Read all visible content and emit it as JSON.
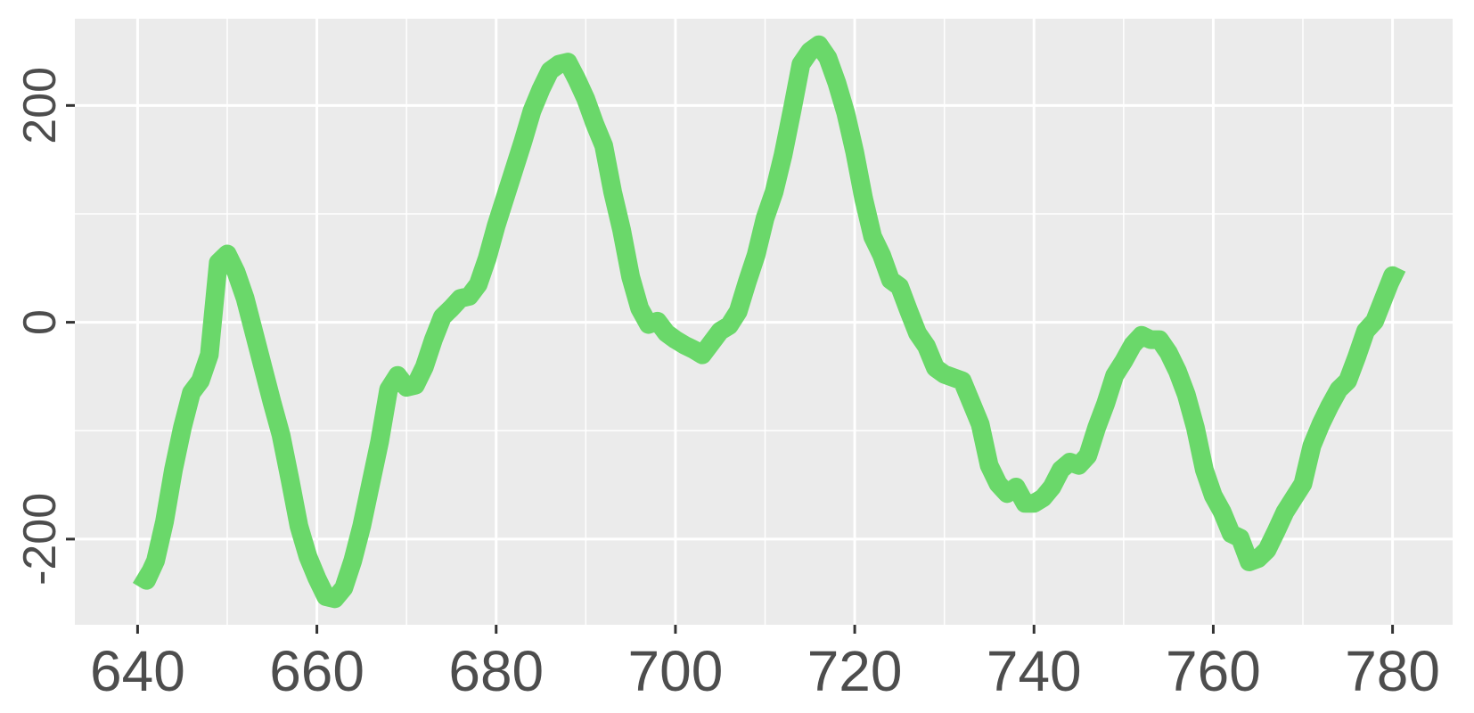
{
  "chart_data": {
    "type": "line",
    "color": "#6ad86a",
    "x": [
      640,
      641,
      642,
      643,
      644,
      645,
      646,
      647,
      648,
      649,
      650,
      651,
      652,
      653,
      654,
      655,
      656,
      657,
      658,
      659,
      660,
      661,
      662,
      663,
      664,
      665,
      666,
      667,
      668,
      669,
      670,
      671,
      672,
      673,
      674,
      675,
      676,
      677,
      678,
      679,
      680,
      681,
      682,
      683,
      684,
      685,
      686,
      687,
      688,
      689,
      690,
      691,
      692,
      693,
      694,
      695,
      696,
      697,
      698,
      699,
      700,
      701,
      702,
      703,
      704,
      705,
      706,
      707,
      708,
      709,
      710,
      711,
      712,
      713,
      714,
      715,
      716,
      717,
      718,
      719,
      720,
      721,
      722,
      723,
      724,
      725,
      726,
      727,
      728,
      729,
      730,
      731,
      732,
      733,
      734,
      735,
      736,
      737,
      738,
      739,
      740,
      741,
      742,
      743,
      744,
      745,
      746,
      747,
      748,
      749,
      750,
      751,
      752,
      753,
      754,
      755,
      756,
      757,
      758,
      759,
      760,
      761,
      762,
      763,
      764,
      765,
      766,
      767,
      768,
      769,
      770,
      771,
      772,
      773,
      774,
      775,
      776,
      777,
      778,
      779,
      780,
      781
    ],
    "values": [
      -233,
      -238,
      -220,
      -184,
      -136,
      -97,
      -65,
      -54,
      -30,
      55,
      63,
      46,
      22,
      -10,
      -42,
      -74,
      -104,
      -145,
      -188,
      -216,
      -236,
      -253,
      -255,
      -245,
      -220,
      -188,
      -149,
      -110,
      -62,
      -49,
      -60,
      -58,
      -41,
      -16,
      5,
      13,
      22,
      24,
      35,
      59,
      89,
      115,
      141,
      167,
      195,
      215,
      232,
      238,
      240,
      224,
      206,
      183,
      163,
      120,
      85,
      42,
      13,
      -2,
      1,
      -10,
      -16,
      -21,
      -25,
      -30,
      -19,
      -8,
      -3,
      10,
      37,
      62,
      96,
      120,
      154,
      195,
      238,
      250,
      256,
      244,
      221,
      193,
      157,
      114,
      79,
      62,
      39,
      33,
      11,
      -10,
      -22,
      -42,
      -48,
      -51,
      -54,
      -74,
      -94,
      -132,
      -149,
      -158,
      -152,
      -167,
      -167,
      -162,
      -152,
      -136,
      -129,
      -132,
      -123,
      -97,
      -75,
      -49,
      -36,
      -21,
      -12,
      -16,
      -16,
      -28,
      -45,
      -67,
      -97,
      -136,
      -160,
      -175,
      -195,
      -199,
      -221,
      -218,
      -210,
      -193,
      -175,
      -162,
      -149,
      -114,
      -94,
      -77,
      -62,
      -54,
      -32,
      -8,
      1,
      22,
      43,
      39
    ],
    "xlim": [
      633,
      786.7
    ],
    "ylim": [
      -279,
      280
    ],
    "xticks": [
      640,
      660,
      680,
      700,
      720,
      740,
      760,
      780
    ],
    "yticks": [
      -200,
      0,
      200
    ],
    "grid": true
  }
}
